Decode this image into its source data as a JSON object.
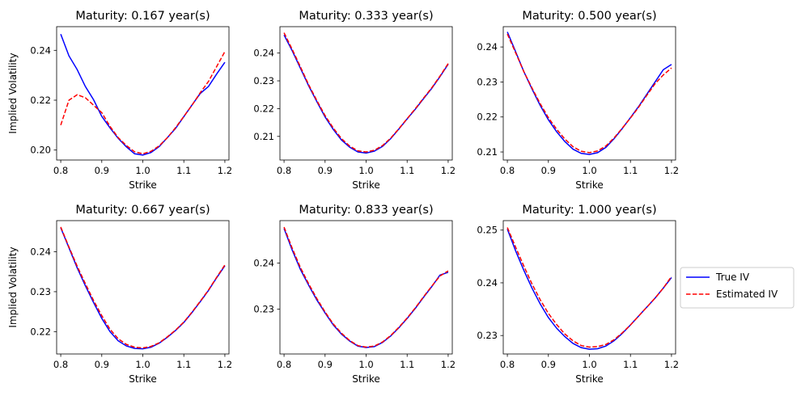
{
  "colors": {
    "true_iv": "#0000ff",
    "estimated_iv": "#ff0000",
    "axes": "#000000"
  },
  "legend": {
    "placement": "right-center",
    "entries": [
      "True IV",
      "Estimated IV"
    ]
  },
  "chart_data": [
    {
      "type": "line",
      "title": "Maturity: 0.167 year(s)",
      "xlabel": "Strike",
      "ylabel": "Implied Volatility",
      "xlim": [
        0.79,
        1.21
      ],
      "ylim": [
        0.196,
        0.2495
      ],
      "xticks": [
        "0.8",
        "0.9",
        "1.0",
        "1.1",
        "1.2"
      ],
      "yticks": [
        "0.20",
        "0.22",
        "0.24"
      ],
      "series": [
        {
          "name": "True IV",
          "style": "solid",
          "x": [
            0.8,
            0.82,
            0.84,
            0.86,
            0.88,
            0.9,
            0.92,
            0.94,
            0.96,
            0.98,
            1.0,
            1.02,
            1.04,
            1.06,
            1.08,
            1.1,
            1.12,
            1.14,
            1.16,
            1.18,
            1.2
          ],
          "y": [
            0.2465,
            0.2378,
            0.2323,
            0.2255,
            0.2202,
            0.2135,
            0.2089,
            0.2047,
            0.2013,
            0.1985,
            0.198,
            0.199,
            0.2014,
            0.205,
            0.2087,
            0.2134,
            0.2181,
            0.2227,
            0.2255,
            0.2305,
            0.2352
          ]
        },
        {
          "name": "Estimated IV",
          "style": "dashed",
          "x": [
            0.8,
            0.82,
            0.84,
            0.86,
            0.88,
            0.9,
            0.92,
            0.94,
            0.96,
            0.98,
            1.0,
            1.02,
            1.04,
            1.06,
            1.08,
            1.1,
            1.12,
            1.14,
            1.16,
            1.18,
            1.2
          ],
          "y": [
            0.21,
            0.22,
            0.2222,
            0.221,
            0.218,
            0.215,
            0.2095,
            0.205,
            0.2018,
            0.1993,
            0.1985,
            0.1995,
            0.2017,
            0.205,
            0.209,
            0.2135,
            0.218,
            0.223,
            0.2275,
            0.2335,
            0.2395
          ]
        }
      ]
    },
    {
      "type": "line",
      "title": "Maturity: 0.333 year(s)",
      "xlabel": "Strike",
      "xlim": [
        0.79,
        1.21
      ],
      "ylim": [
        0.2015,
        0.2495
      ],
      "xticks": [
        "0.8",
        "0.9",
        "1.0",
        "1.1",
        "1.2"
      ],
      "yticks": [
        "0.21",
        "0.22",
        "0.23",
        "0.24"
      ],
      "series": [
        {
          "name": "True IV",
          "style": "solid",
          "x": [
            0.8,
            0.82,
            0.84,
            0.86,
            0.88,
            0.9,
            0.92,
            0.94,
            0.96,
            0.98,
            1.0,
            1.02,
            1.04,
            1.06,
            1.08,
            1.1,
            1.12,
            1.14,
            1.16,
            1.18,
            1.2
          ],
          "y": [
            0.2465,
            0.2408,
            0.2345,
            0.2282,
            0.2225,
            0.217,
            0.2125,
            0.2087,
            0.2061,
            0.2044,
            0.204,
            0.2047,
            0.2064,
            0.2092,
            0.2127,
            0.2163,
            0.2198,
            0.2236,
            0.2273,
            0.2315,
            0.236
          ]
        },
        {
          "name": "Estimated IV",
          "style": "dashed",
          "x": [
            0.8,
            0.82,
            0.84,
            0.86,
            0.88,
            0.9,
            0.92,
            0.94,
            0.96,
            0.98,
            1.0,
            1.02,
            1.04,
            1.06,
            1.08,
            1.1,
            1.12,
            1.14,
            1.16,
            1.18,
            1.2
          ],
          "y": [
            0.2473,
            0.2413,
            0.235,
            0.2286,
            0.2229,
            0.2175,
            0.213,
            0.2092,
            0.2065,
            0.2048,
            0.2044,
            0.205,
            0.2067,
            0.2094,
            0.2128,
            0.2164,
            0.22,
            0.2238,
            0.2275,
            0.2317,
            0.2362
          ]
        }
      ]
    },
    {
      "type": "line",
      "title": "Maturity: 0.500 year(s)",
      "xlabel": "Strike",
      "xlim": [
        0.79,
        1.21
      ],
      "ylim": [
        0.2077,
        0.2458
      ],
      "xticks": [
        "0.8",
        "0.9",
        "1.0",
        "1.1",
        "1.2"
      ],
      "yticks": [
        "0.21",
        "0.22",
        "0.23",
        "0.24"
      ],
      "series": [
        {
          "name": "True IV",
          "style": "solid",
          "x": [
            0.8,
            0.82,
            0.84,
            0.86,
            0.88,
            0.9,
            0.92,
            0.94,
            0.96,
            0.98,
            1.0,
            1.02,
            1.04,
            1.06,
            1.08,
            1.1,
            1.12,
            1.14,
            1.16,
            1.18,
            1.2
          ],
          "y": [
            0.2443,
            0.2387,
            0.233,
            0.228,
            0.2233,
            0.2192,
            0.2158,
            0.213,
            0.2108,
            0.2096,
            0.2093,
            0.2098,
            0.2113,
            0.2138,
            0.2167,
            0.2198,
            0.223,
            0.2265,
            0.23,
            0.2335,
            0.235
          ]
        },
        {
          "name": "Estimated IV",
          "style": "dashed",
          "x": [
            0.8,
            0.82,
            0.84,
            0.86,
            0.88,
            0.9,
            0.92,
            0.94,
            0.96,
            0.98,
            1.0,
            1.02,
            1.04,
            1.06,
            1.08,
            1.1,
            1.12,
            1.14,
            1.16,
            1.18,
            1.2
          ],
          "y": [
            0.2437,
            0.2384,
            0.233,
            0.2283,
            0.2238,
            0.2198,
            0.2165,
            0.2137,
            0.2115,
            0.2102,
            0.2098,
            0.2103,
            0.2117,
            0.214,
            0.2168,
            0.2197,
            0.2228,
            0.2262,
            0.2295,
            0.232,
            0.234
          ]
        }
      ]
    },
    {
      "type": "line",
      "title": "Maturity: 0.667 year(s)",
      "xlabel": "Strike",
      "ylabel": "Implied Volatility",
      "xlim": [
        0.79,
        1.21
      ],
      "ylim": [
        0.2144,
        0.2478
      ],
      "xticks": [
        "0.8",
        "0.9",
        "1.0",
        "1.1",
        "1.2"
      ],
      "yticks": [
        "0.22",
        "0.23",
        "0.24"
      ],
      "series": [
        {
          "name": "True IV",
          "style": "solid",
          "x": [
            0.8,
            0.82,
            0.84,
            0.86,
            0.88,
            0.9,
            0.92,
            0.94,
            0.96,
            0.98,
            1.0,
            1.02,
            1.04,
            1.06,
            1.08,
            1.1,
            1.12,
            1.14,
            1.16,
            1.18,
            1.2
          ],
          "y": [
            0.246,
            0.241,
            0.236,
            0.2315,
            0.2273,
            0.2233,
            0.22,
            0.2177,
            0.2164,
            0.2158,
            0.2157,
            0.2161,
            0.2171,
            0.2186,
            0.2203,
            0.2223,
            0.2248,
            0.2275,
            0.2303,
            0.2335,
            0.2365
          ]
        },
        {
          "name": "Estimated IV",
          "style": "dashed",
          "x": [
            0.8,
            0.82,
            0.84,
            0.86,
            0.88,
            0.9,
            0.92,
            0.94,
            0.96,
            0.98,
            1.0,
            1.02,
            1.04,
            1.06,
            1.08,
            1.1,
            1.12,
            1.14,
            1.16,
            1.18,
            1.2
          ],
          "y": [
            0.2462,
            0.2412,
            0.2364,
            0.232,
            0.2278,
            0.224,
            0.2206,
            0.2182,
            0.2168,
            0.2161,
            0.2159,
            0.2163,
            0.2172,
            0.2187,
            0.2204,
            0.2224,
            0.2249,
            0.2276,
            0.2304,
            0.2336,
            0.2367
          ]
        }
      ]
    },
    {
      "type": "line",
      "title": "Maturity: 0.833 year(s)",
      "xlabel": "Strike",
      "xlim": [
        0.79,
        1.21
      ],
      "ylim": [
        0.2203,
        0.2492
      ],
      "xticks": [
        "0.8",
        "0.9",
        "1.0",
        "1.1",
        "1.2"
      ],
      "yticks": [
        "0.23",
        "0.24"
      ],
      "series": [
        {
          "name": "True IV",
          "style": "solid",
          "x": [
            0.8,
            0.82,
            0.84,
            0.86,
            0.88,
            0.9,
            0.92,
            0.94,
            0.96,
            0.98,
            1.0,
            1.02,
            1.04,
            1.06,
            1.08,
            1.1,
            1.12,
            1.14,
            1.16,
            1.18,
            1.2
          ],
          "y": [
            0.2475,
            0.2428,
            0.2386,
            0.2352,
            0.232,
            0.2292,
            0.2266,
            0.2246,
            0.2231,
            0.222,
            0.2217,
            0.2219,
            0.2228,
            0.2242,
            0.226,
            0.228,
            0.2302,
            0.2326,
            0.2349,
            0.2374,
            0.238
          ]
        },
        {
          "name": "Estimated IV",
          "style": "dashed",
          "x": [
            0.8,
            0.82,
            0.84,
            0.86,
            0.88,
            0.9,
            0.92,
            0.94,
            0.96,
            0.98,
            1.0,
            1.02,
            1.04,
            1.06,
            1.08,
            1.1,
            1.12,
            1.14,
            1.16,
            1.18,
            1.2
          ],
          "y": [
            0.2478,
            0.2432,
            0.239,
            0.2355,
            0.2323,
            0.2294,
            0.2268,
            0.2248,
            0.2232,
            0.2221,
            0.2218,
            0.222,
            0.2229,
            0.2243,
            0.2261,
            0.2281,
            0.2303,
            0.2327,
            0.235,
            0.2372,
            0.2383
          ]
        }
      ]
    },
    {
      "type": "line",
      "title": "Maturity: 1.000 year(s)",
      "xlabel": "Strike",
      "xlim": [
        0.79,
        1.21
      ],
      "ylim": [
        0.2265,
        0.2518
      ],
      "xticks": [
        "0.8",
        "0.9",
        "1.0",
        "1.1",
        "1.2"
      ],
      "yticks": [
        "0.23",
        "0.24",
        "0.25"
      ],
      "series": [
        {
          "name": "True IV",
          "style": "solid",
          "x": [
            0.8,
            0.82,
            0.84,
            0.86,
            0.88,
            0.9,
            0.92,
            0.94,
            0.96,
            0.98,
            1.0,
            1.02,
            1.04,
            1.06,
            1.08,
            1.1,
            1.12,
            1.14,
            1.16,
            1.18,
            1.2
          ],
          "y": [
            0.2502,
            0.2461,
            0.2424,
            0.239,
            0.236,
            0.2334,
            0.2314,
            0.2298,
            0.2285,
            0.2277,
            0.2274,
            0.2275,
            0.228,
            0.229,
            0.2304,
            0.232,
            0.2337,
            0.2354,
            0.2371,
            0.239,
            0.241
          ]
        },
        {
          "name": "Estimated IV",
          "style": "dashed",
          "x": [
            0.8,
            0.82,
            0.84,
            0.86,
            0.88,
            0.9,
            0.92,
            0.94,
            0.96,
            0.98,
            1.0,
            1.02,
            1.04,
            1.06,
            1.08,
            1.1,
            1.12,
            1.14,
            1.16,
            1.18,
            1.2
          ],
          "y": [
            0.2505,
            0.2468,
            0.2432,
            0.2398,
            0.2368,
            0.2342,
            0.2321,
            0.2303,
            0.229,
            0.2281,
            0.2278,
            0.2279,
            0.2283,
            0.2292,
            0.2305,
            0.232,
            0.2337,
            0.2354,
            0.2371,
            0.239,
            0.2412
          ]
        }
      ]
    }
  ]
}
